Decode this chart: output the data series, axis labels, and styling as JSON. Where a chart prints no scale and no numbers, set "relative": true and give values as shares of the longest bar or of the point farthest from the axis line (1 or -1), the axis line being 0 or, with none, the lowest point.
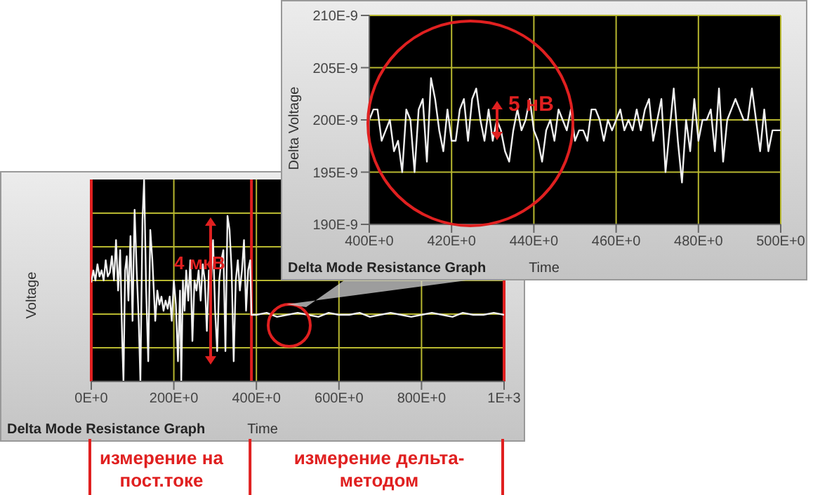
{
  "chart_data": [
    {
      "type": "line",
      "title": "Delta Mode Resistance Graph",
      "xlabel": "Time",
      "ylabel": "Delta Voltage",
      "xlim": [
        400,
        500
      ],
      "xticks": [
        {
          "value": 400,
          "label": "400E+0"
        },
        {
          "value": 420,
          "label": "420E+0"
        },
        {
          "value": 440,
          "label": "440E+0"
        },
        {
          "value": 460,
          "label": "460E+0"
        },
        {
          "value": 480,
          "label": "480E+0"
        },
        {
          "value": 500,
          "label": "500E+0"
        }
      ],
      "ylim": [
        1.9e-07,
        2.1e-07
      ],
      "yticks": [
        {
          "value": 1.9e-07,
          "label": "190E-9"
        },
        {
          "value": 1.95e-07,
          "label": "195E-9"
        },
        {
          "value": 2e-07,
          "label": "200E-9"
        },
        {
          "value": 2.05e-07,
          "label": "205E-9"
        },
        {
          "value": 2.1e-07,
          "label": "210E-9"
        }
      ],
      "grid": true,
      "annotations": [
        "5 нВ"
      ],
      "x": [
        400,
        401,
        402,
        403,
        404,
        405,
        406,
        407,
        408,
        409,
        410,
        411,
        412,
        413,
        414,
        415,
        416,
        417,
        418,
        419,
        420,
        421,
        422,
        423,
        424,
        425,
        426,
        427,
        428,
        429,
        430,
        431,
        432,
        433,
        434,
        435,
        436,
        437,
        438,
        439,
        440,
        441,
        442,
        443,
        444,
        445,
        446,
        447,
        448,
        449,
        450,
        451,
        452,
        453,
        454,
        455,
        456,
        457,
        458,
        459,
        460,
        461,
        462,
        463,
        464,
        465,
        466,
        467,
        468,
        469,
        470,
        471,
        472,
        473,
        474,
        475,
        476,
        477,
        478,
        479,
        480,
        481,
        482,
        483,
        484,
        485,
        486,
        487,
        488,
        489,
        490,
        491,
        492,
        493,
        494,
        495,
        496,
        497,
        498,
        499,
        500
      ],
      "series": [
        {
          "color": "#f0f0f0",
          "values": [
            2e-07,
            2.01e-07,
            2.01e-07,
            1.98e-07,
            1.99e-07,
            2e-07,
            1.97e-07,
            1.98e-07,
            1.95e-07,
            2.01e-07,
            2e-07,
            1.95e-07,
            2.01e-07,
            2.02e-07,
            1.96e-07,
            2.04e-07,
            2.02e-07,
            1.99e-07,
            1.97e-07,
            2.01e-07,
            1.98e-07,
            1.98e-07,
            2.01e-07,
            2.02e-07,
            1.98e-07,
            2.02e-07,
            2.03e-07,
            2e-07,
            1.98e-07,
            2.01e-07,
            1.98e-07,
            2e-07,
            1.99e-07,
            1.97e-07,
            1.96e-07,
            1.99e-07,
            2.01e-07,
            1.99e-07,
            2e-07,
            2.02e-07,
            1.99e-07,
            1.98e-07,
            1.96e-07,
            1.99e-07,
            2e-07,
            1.98e-07,
            2.01e-07,
            2e-07,
            1.99e-07,
            2.01e-07,
            1.98e-07,
            1.99e-07,
            1.99e-07,
            1.98e-07,
            2.01e-07,
            2.01e-07,
            2e-07,
            1.98e-07,
            2e-07,
            1.99e-07,
            2e-07,
            2.01e-07,
            1.99e-07,
            2e-07,
            1.99e-07,
            2.01e-07,
            1.99e-07,
            2.01e-07,
            2.02e-07,
            1.98e-07,
            2e-07,
            2.02e-07,
            1.95e-07,
            1.99e-07,
            2.03e-07,
            1.98e-07,
            1.94e-07,
            2e-07,
            1.97e-07,
            2.02e-07,
            1.98e-07,
            2e-07,
            2e-07,
            2.01e-07,
            1.97e-07,
            2.03e-07,
            1.96e-07,
            2e-07,
            2.01e-07,
            2.02e-07,
            2.01e-07,
            2e-07,
            2e-07,
            2.03e-07,
            2e-07,
            1.97e-07,
            2.01e-07,
            1.97e-07,
            1.99e-07,
            1.99e-07,
            1.99e-07
          ]
        }
      ]
    },
    {
      "type": "line",
      "title": "Delta Mode Resistance Graph",
      "xlabel": "Time",
      "ylabel": "Voltage",
      "relative": true,
      "tick_labels": "x",
      "xlim": [
        0,
        1000
      ],
      "xticks": [
        {
          "value": 0,
          "label": "0E+0"
        },
        {
          "value": 200,
          "label": "200E+0"
        },
        {
          "value": 400,
          "label": "400E+0"
        },
        {
          "value": 600,
          "label": "600E+0"
        },
        {
          "value": 800,
          "label": "800E+0"
        },
        {
          "value": 1000,
          "label": "1E+3"
        }
      ],
      "grid": true,
      "ref_lines": [
        {
          "axis": "x",
          "value": 0,
          "color": "#e02020"
        },
        {
          "axis": "x",
          "value": 388,
          "color": "#e02020"
        },
        {
          "axis": "x",
          "value": 1000,
          "color": "#e02020"
        }
      ],
      "annotations": [
        "4 мкВ",
        "измерение на пост.токе",
        "измерение дельта-методом"
      ],
      "x": [
        0,
        5,
        10,
        15,
        20,
        25,
        30,
        35,
        40,
        45,
        50,
        55,
        60,
        65,
        70,
        75,
        78,
        82,
        86,
        90,
        95,
        100,
        105,
        110,
        115,
        119,
        124,
        128,
        133,
        138,
        143,
        148,
        155,
        160,
        165,
        170,
        175,
        180,
        185,
        190,
        195,
        200,
        205,
        210,
        215,
        218,
        222,
        226,
        230,
        235,
        240,
        245,
        250,
        255,
        260,
        265,
        270,
        275,
        280,
        285,
        290,
        295,
        300,
        305,
        310,
        315,
        320,
        325,
        330,
        335,
        340,
        345,
        350,
        355,
        360,
        365,
        370,
        375,
        380,
        385,
        388,
        400,
        425,
        450,
        475,
        500,
        525,
        550,
        575,
        600,
        625,
        650,
        675,
        700,
        725,
        750,
        775,
        800,
        825,
        850,
        875,
        900,
        925,
        950,
        975,
        1000
      ],
      "series": [
        {
          "color": "#f0f0f0",
          "values": [
            0.49,
            0.55,
            0.5,
            0.58,
            0.52,
            0.55,
            0.5,
            0.6,
            0.52,
            0.54,
            0.62,
            0.5,
            0.7,
            0.45,
            0.65,
            0.2,
            0.0,
            0.55,
            0.62,
            0.4,
            0.72,
            0.3,
            0.85,
            0.55,
            0.3,
            0.0,
            0.8,
            1.0,
            0.45,
            0.1,
            0.75,
            0.6,
            0.3,
            0.45,
            0.38,
            0.42,
            0.35,
            0.4,
            0.36,
            0.42,
            0.3,
            0.5,
            0.38,
            0.1,
            0.45,
            0.0,
            0.5,
            0.35,
            0.55,
            0.4,
            0.6,
            0.2,
            0.5,
            0.45,
            0.55,
            0.4,
            0.58,
            0.5,
            0.25,
            0.55,
            0.48,
            0.7,
            0.35,
            0.15,
            0.5,
            0.6,
            0.65,
            0.15,
            0.82,
            0.75,
            0.55,
            0.1,
            0.5,
            0.6,
            0.45,
            0.55,
            0.7,
            0.35,
            0.55,
            0.6,
            0.33,
            0.33,
            0.34,
            0.32,
            0.33,
            0.34,
            0.33,
            0.32,
            0.34,
            0.33,
            0.33,
            0.34,
            0.32,
            0.33,
            0.34,
            0.33,
            0.32,
            0.33,
            0.34,
            0.33,
            0.32,
            0.34,
            0.33,
            0.33,
            0.34,
            0.33
          ]
        }
      ]
    }
  ]
}
